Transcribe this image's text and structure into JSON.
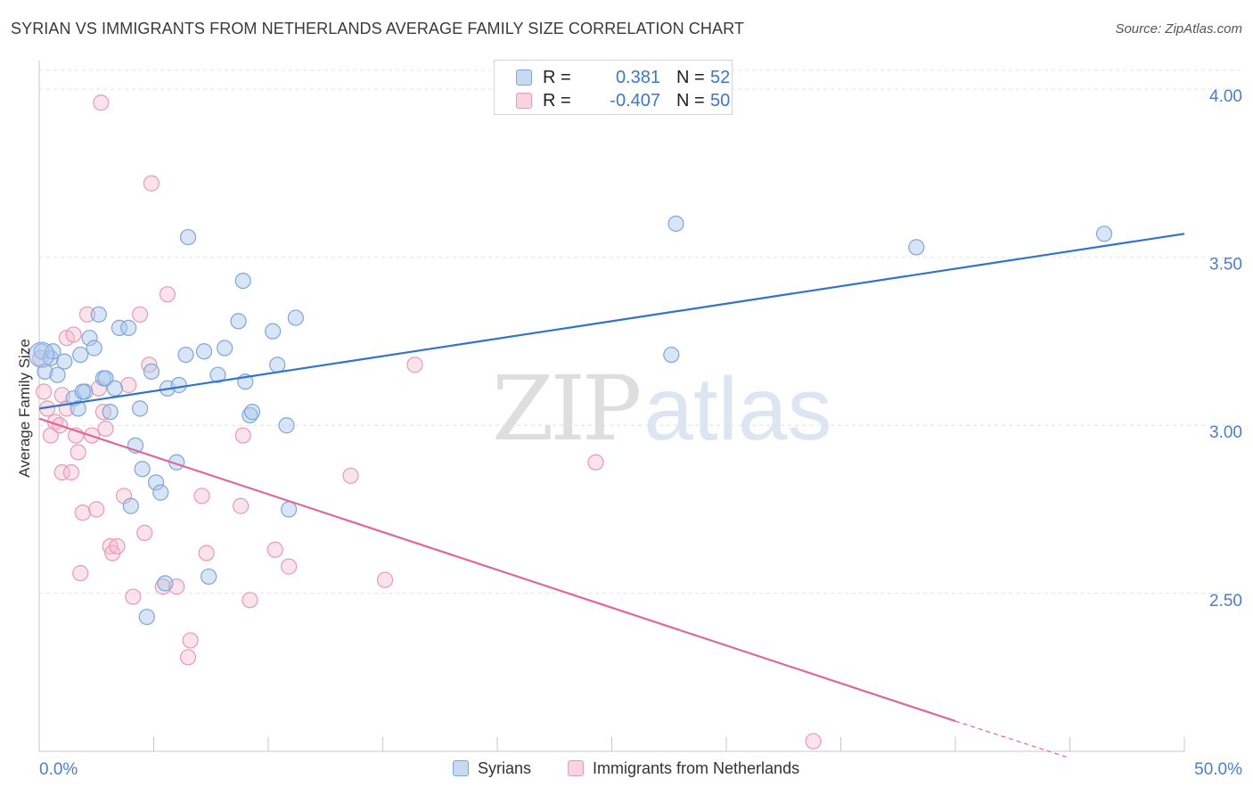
{
  "header": {
    "title": "SYRIAN VS IMMIGRANTS FROM NETHERLANDS AVERAGE FAMILY SIZE CORRELATION CHART",
    "source": "Source: ZipAtlas.com"
  },
  "watermark": {
    "zip": "ZIP",
    "atlas": "atlas"
  },
  "legend_top": {
    "rows": [
      {
        "r_label": "R =",
        "r_value": "0.381",
        "n_label": "N =",
        "n_value": "52",
        "color": "#a9c6ec"
      },
      {
        "r_label": "R =",
        "r_value": "-0.407",
        "n_label": "N =",
        "n_value": "50",
        "color": "#f5b8cc"
      }
    ]
  },
  "legend_bottom": {
    "items": [
      {
        "label": "Syrians",
        "color": "#a9c6ec"
      },
      {
        "label": "Immigrants from Netherlands",
        "color": "#f5b8cc"
      }
    ]
  },
  "colors": {
    "syrians_fill": "rgba(169,198,236,0.45)",
    "syrians_stroke": "#7fa6d8",
    "syrians_line": "#2f72cf",
    "netherlands_fill": "rgba(245,184,204,0.40)",
    "netherlands_stroke": "#e79ab4",
    "netherlands_line": "#e0679a",
    "tick_label": "#4a7fc8",
    "grid": "#e2e2e2"
  },
  "chart_data": {
    "type": "scatter",
    "title": "SYRIAN VS IMMIGRANTS FROM NETHERLANDS AVERAGE FAMILY SIZE CORRELATION CHART",
    "xlabel": "",
    "ylabel": "Average Family Size",
    "xlim": [
      0,
      50
    ],
    "ylim": [
      2.03,
      4.08
    ],
    "x_tick_labels": [
      "0.0%",
      "50.0%"
    ],
    "x_tick_values": [
      0,
      5,
      10,
      15,
      20,
      25,
      30,
      35,
      40,
      45,
      50
    ],
    "y_ticks": [
      {
        "value": 2.5,
        "label": "2.50"
      },
      {
        "value": 3.0,
        "label": "3.00"
      },
      {
        "value": 3.5,
        "label": "3.50"
      },
      {
        "value": 4.0,
        "label": "4.00"
      }
    ],
    "grid": true,
    "legend_position": "top-center",
    "series": [
      {
        "name": "Syrians",
        "R": 0.381,
        "N": 52,
        "trend": {
          "x": [
            0,
            50
          ],
          "y": [
            3.05,
            3.57
          ]
        },
        "points": [
          [
            0.1,
            3.22
          ],
          [
            0.25,
            3.16
          ],
          [
            0.5,
            3.2
          ],
          [
            0.6,
            3.22
          ],
          [
            0.8,
            3.15
          ],
          [
            1.1,
            3.19
          ],
          [
            1.5,
            3.08
          ],
          [
            1.7,
            3.05
          ],
          [
            1.8,
            3.21
          ],
          [
            2.0,
            3.1
          ],
          [
            2.2,
            3.26
          ],
          [
            2.4,
            3.23
          ],
          [
            2.6,
            3.33
          ],
          [
            2.8,
            3.14
          ],
          [
            2.9,
            3.14
          ],
          [
            3.1,
            3.04
          ],
          [
            3.3,
            3.11
          ],
          [
            3.5,
            3.29
          ],
          [
            3.9,
            3.29
          ],
          [
            4.0,
            2.76
          ],
          [
            4.2,
            2.94
          ],
          [
            4.4,
            3.05
          ],
          [
            4.5,
            2.87
          ],
          [
            4.7,
            2.43
          ],
          [
            4.9,
            3.16
          ],
          [
            5.1,
            2.83
          ],
          [
            5.3,
            2.8
          ],
          [
            5.5,
            2.53
          ],
          [
            5.6,
            3.11
          ],
          [
            6.0,
            2.89
          ],
          [
            6.1,
            3.12
          ],
          [
            6.4,
            3.21
          ],
          [
            6.5,
            3.56
          ],
          [
            7.2,
            3.22
          ],
          [
            7.4,
            2.55
          ],
          [
            7.8,
            3.15
          ],
          [
            8.1,
            3.23
          ],
          [
            8.7,
            3.31
          ],
          [
            8.9,
            3.43
          ],
          [
            9.0,
            3.13
          ],
          [
            9.2,
            3.03
          ],
          [
            9.3,
            3.04
          ],
          [
            10.2,
            3.28
          ],
          [
            10.4,
            3.18
          ],
          [
            10.8,
            3.0
          ],
          [
            10.9,
            2.75
          ],
          [
            11.2,
            3.32
          ],
          [
            27.6,
            3.21
          ],
          [
            27.8,
            3.6
          ],
          [
            38.3,
            3.53
          ],
          [
            46.5,
            3.57
          ],
          [
            1.9,
            3.1
          ]
        ]
      },
      {
        "name": "Immigrants from Netherlands",
        "R": -0.407,
        "N": 50,
        "trend": {
          "x": [
            0,
            40
          ],
          "y": [
            3.02,
            2.12
          ],
          "dashed_extension": {
            "x": [
              40,
              45
            ],
            "y": [
              2.12,
              2.01
            ]
          }
        },
        "points": [
          [
            0.05,
            3.2
          ],
          [
            0.2,
            3.1
          ],
          [
            0.35,
            3.05
          ],
          [
            0.5,
            2.97
          ],
          [
            0.7,
            3.01
          ],
          [
            0.9,
            3.0
          ],
          [
            1.0,
            3.09
          ],
          [
            1.0,
            2.86
          ],
          [
            1.2,
            3.05
          ],
          [
            1.2,
            3.26
          ],
          [
            1.4,
            2.86
          ],
          [
            1.5,
            3.27
          ],
          [
            1.6,
            2.97
          ],
          [
            1.7,
            2.92
          ],
          [
            1.8,
            2.56
          ],
          [
            1.9,
            2.74
          ],
          [
            2.1,
            3.33
          ],
          [
            2.3,
            2.97
          ],
          [
            2.5,
            2.75
          ],
          [
            2.6,
            3.11
          ],
          [
            2.7,
            3.96
          ],
          [
            2.8,
            3.04
          ],
          [
            2.9,
            2.99
          ],
          [
            3.1,
            2.64
          ],
          [
            3.2,
            2.62
          ],
          [
            3.4,
            2.64
          ],
          [
            3.7,
            2.79
          ],
          [
            3.9,
            3.12
          ],
          [
            4.1,
            2.49
          ],
          [
            4.4,
            3.33
          ],
          [
            4.6,
            2.68
          ],
          [
            4.8,
            3.18
          ],
          [
            4.9,
            3.72
          ],
          [
            5.4,
            2.52
          ],
          [
            5.6,
            3.39
          ],
          [
            6.0,
            2.52
          ],
          [
            6.5,
            2.31
          ],
          [
            6.6,
            2.36
          ],
          [
            7.1,
            2.79
          ],
          [
            7.3,
            2.62
          ],
          [
            8.8,
            2.76
          ],
          [
            8.9,
            2.97
          ],
          [
            9.2,
            2.48
          ],
          [
            10.3,
            2.63
          ],
          [
            10.9,
            2.58
          ],
          [
            13.6,
            2.85
          ],
          [
            15.1,
            2.54
          ],
          [
            16.4,
            3.18
          ],
          [
            24.3,
            2.89
          ],
          [
            33.8,
            2.06
          ]
        ]
      }
    ]
  }
}
